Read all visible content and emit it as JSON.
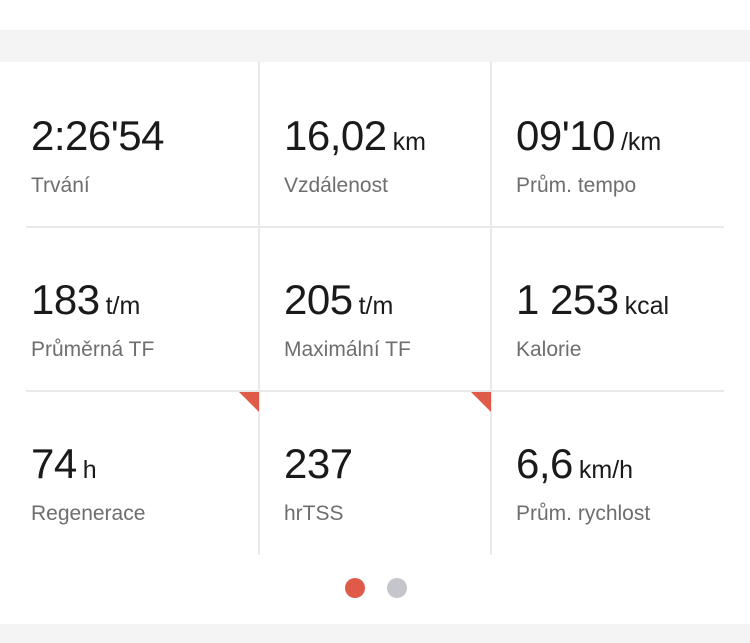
{
  "stats": [
    {
      "value": "2:26'54",
      "unit": "",
      "label": "Trvání"
    },
    {
      "value": "16,02",
      "unit": "km",
      "label": "Vzdálenost"
    },
    {
      "value": "09'10",
      "unit": "/km",
      "label": "Prům. tempo"
    },
    {
      "value": "183",
      "unit": "t/m",
      "label": "Průměrná TF"
    },
    {
      "value": "205",
      "unit": "t/m",
      "label": "Maximální TF"
    },
    {
      "value": "1 253",
      "unit": "kcal",
      "label": "Kalorie"
    },
    {
      "value": "74",
      "unit": "h",
      "label": "Regenerace"
    },
    {
      "value": "237",
      "unit": "",
      "label": "hrTSS"
    },
    {
      "value": "6,6",
      "unit": "km/h",
      "label": "Prům. rychlost"
    }
  ],
  "pager": {
    "pages": 2,
    "active_page": 1,
    "active_color": "#e05a4a",
    "inactive_color": "#c4c6cc"
  },
  "accent_color": "#e05a4a"
}
